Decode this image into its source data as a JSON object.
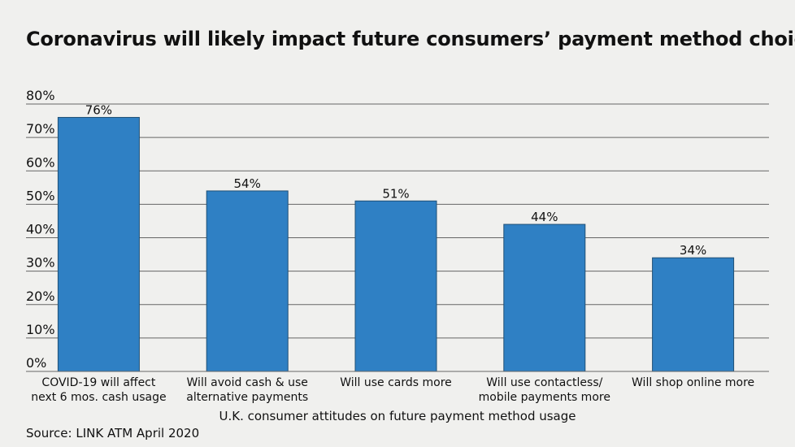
{
  "chart_data": {
    "type": "bar",
    "title": "Coronavirus will likely impact future consumers’ payment method choices",
    "xlabel": "U.K. consumer attitudes on future payment method usage",
    "ylabel": "",
    "ylim": [
      0,
      80
    ],
    "yticks": [
      "0%",
      "10%",
      "20%",
      "30%",
      "40%",
      "50%",
      "60%",
      "70%",
      "80%"
    ],
    "categories": [
      [
        "COVID-19 will affect",
        "next 6 mos. cash usage"
      ],
      [
        "Will avoid cash & use",
        "alternative payments"
      ],
      [
        "Will use cards more"
      ],
      [
        "Will use contactless/",
        "mobile payments more"
      ],
      [
        "Will shop online more"
      ]
    ],
    "values": [
      76,
      54,
      51,
      44,
      34
    ],
    "data_labels": [
      "76%",
      "54%",
      "51%",
      "44%",
      "34%"
    ],
    "grid": true,
    "bar_color": "#2f80c4",
    "bar_edge_color": "#1f4f75",
    "grid_color": "#666666",
    "background": "#f0f0ee"
  },
  "source": "Source: LINK ATM April 2020"
}
